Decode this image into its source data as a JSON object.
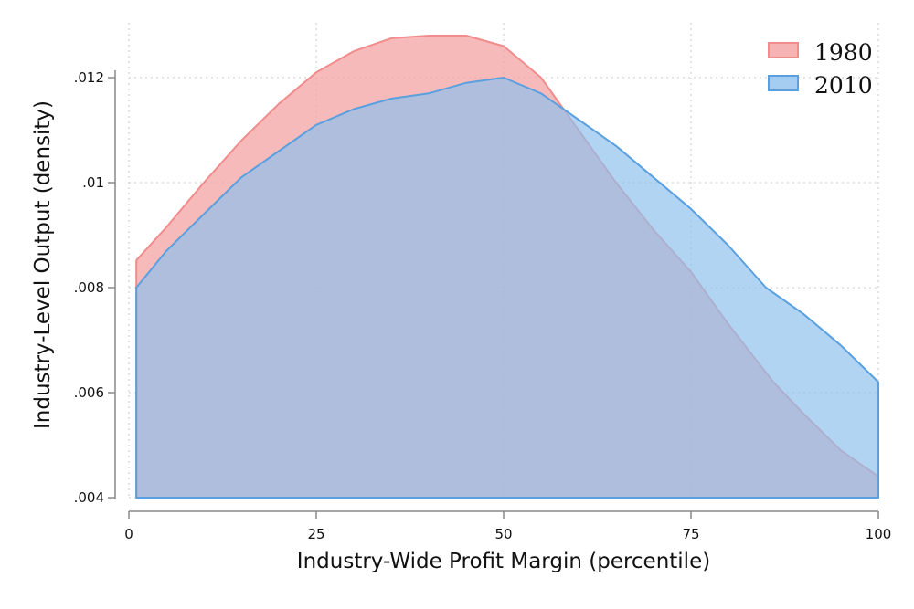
{
  "chart_data": {
    "type": "area",
    "title": "",
    "xlabel": "Industry-Wide Profit Margin (percentile)",
    "ylabel": "Industry-Level Output (density)",
    "xlim": [
      0,
      100
    ],
    "ylim": [
      0.004,
      0.0128
    ],
    "xticks": [
      0,
      25,
      50,
      75,
      100
    ],
    "xtick_labels": [
      "0",
      "25",
      "50",
      "75",
      "100"
    ],
    "yticks": [
      0.004,
      0.006,
      0.008,
      0.01,
      0.012
    ],
    "ytick_labels": [
      ".004",
      ".006",
      ".008",
      ".01",
      ".012"
    ],
    "grid": true,
    "legend_position": "top-right",
    "baseline": 0.004,
    "series": [
      {
        "name": "1980",
        "color": "#f4a0a0",
        "line_color": "#f08c8c",
        "x": [
          1,
          5,
          10,
          15,
          20,
          25,
          30,
          35,
          40,
          45,
          50,
          55,
          60,
          65,
          70,
          75,
          80,
          86,
          90,
          95,
          100
        ],
        "y": [
          0.00852,
          0.00915,
          0.01,
          0.0108,
          0.0115,
          0.0121,
          0.0125,
          0.01275,
          0.0128,
          0.0128,
          0.0126,
          0.012,
          0.011,
          0.01,
          0.0091,
          0.0083,
          0.0073,
          0.0062,
          0.0056,
          0.0049,
          0.0044
        ]
      },
      {
        "name": "2010",
        "color": "#8ec0ee",
        "line_color": "#5aa0e0",
        "x": [
          1,
          5,
          10,
          15,
          20,
          25,
          30,
          35,
          40,
          45,
          50,
          55,
          60,
          65,
          70,
          75,
          80,
          85,
          90,
          95,
          100
        ],
        "y": [
          0.008,
          0.0087,
          0.0094,
          0.0101,
          0.0106,
          0.0111,
          0.0114,
          0.0116,
          0.0117,
          0.0119,
          0.012,
          0.0117,
          0.0112,
          0.0107,
          0.0101,
          0.0095,
          0.0088,
          0.008,
          0.0075,
          0.0069,
          0.0062
        ]
      }
    ]
  }
}
